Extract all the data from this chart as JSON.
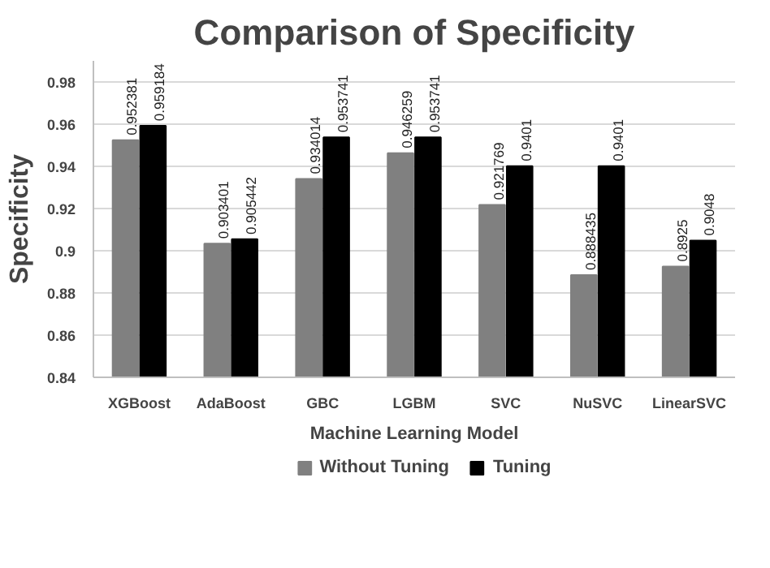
{
  "chart_data": {
    "type": "bar",
    "title": "Comparison of Specificity",
    "xlabel": "Machine Learning Model",
    "ylabel": "Specificity",
    "categories": [
      "XGBoost",
      "AdaBoost",
      "GBC",
      "LGBM",
      "SVC",
      "NuSVC",
      "LinearSVC"
    ],
    "series": [
      {
        "name": "Without Tuning",
        "color": "#808080",
        "values": [
          0.952381,
          0.903401,
          0.934014,
          0.946259,
          0.921769,
          0.888435,
          0.8925
        ]
      },
      {
        "name": "Tuning",
        "color": "#000000",
        "values": [
          0.959184,
          0.905442,
          0.953741,
          0.953741,
          0.9401,
          0.9401,
          0.9048
        ]
      }
    ],
    "ylim": [
      0.84,
      0.99
    ],
    "yticks": [
      0.84,
      0.86,
      0.88,
      0.9,
      0.92,
      0.94,
      0.96,
      0.98
    ],
    "grid": "y",
    "legend": "bottom",
    "data_labels": true
  }
}
